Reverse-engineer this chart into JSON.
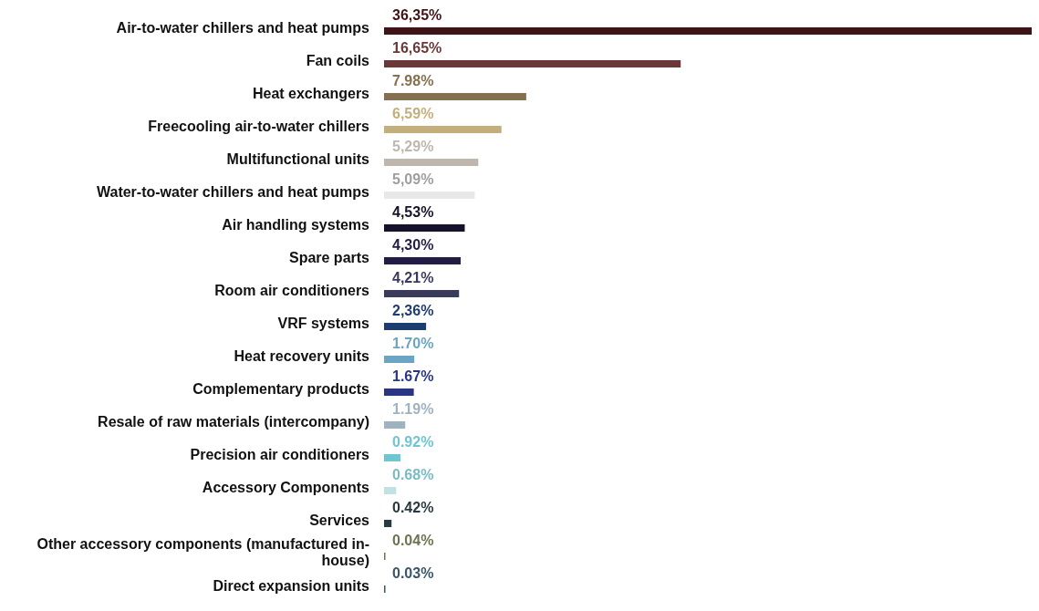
{
  "chart_data": {
    "type": "bar",
    "orientation": "horizontal",
    "categories": [
      "Air-to-water chillers and heat pumps",
      "Fan coils",
      "Heat exchangers",
      "Freecooling air-to-water chillers",
      "Multifunctional units",
      "Water-to-water chillers and heat pumps",
      "Air handling systems",
      "Spare parts",
      "Room air conditioners",
      "VRF systems",
      "Heat recovery units",
      "Complementary products",
      "Resale of raw materials (intercompany)",
      "Precision air conditioners",
      "Accessory Components",
      "Services",
      "Other accessory components (manufactured in-house)",
      "Direct expansion units"
    ],
    "values": [
      36.35,
      16.65,
      7.98,
      6.59,
      5.29,
      5.09,
      4.53,
      4.3,
      4.21,
      2.36,
      1.7,
      1.67,
      1.19,
      0.92,
      0.68,
      0.42,
      0.04,
      0.03
    ],
    "value_labels": [
      "36,35%",
      "16,65%",
      "7.98%",
      "6,59%",
      "5,29%",
      "5,09%",
      "4,53%",
      "4,30%",
      "4,21%",
      "2,36%",
      "1.70%",
      "1.67%",
      "1.19%",
      "0.92%",
      "0.68%",
      "0.42%",
      "0.04%",
      "0.03%"
    ],
    "colors": [
      "#3f1416",
      "#6b3838",
      "#84704f",
      "#c4ae7c",
      "#bfb7ad",
      "#e8e8e8",
      "#15122a",
      "#231c45",
      "#3a3a5c",
      "#1d3c70",
      "#6ba5c2",
      "#2a3583",
      "#9fb2c0",
      "#6ec6d3",
      "#c3e1e4",
      "#283a40",
      "#6e7450",
      "#3a5668"
    ]
  }
}
